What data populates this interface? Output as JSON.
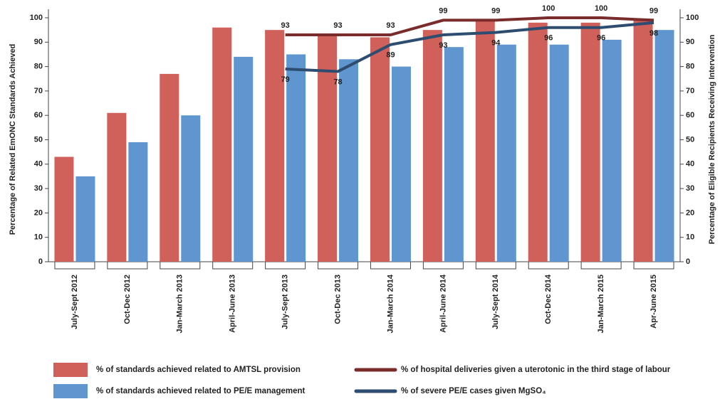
{
  "chart_data": {
    "type": "bar",
    "categories": [
      "July-Sept 2012",
      "Oct-Dec 2012",
      "Jan-March 2013",
      "April-June 2013",
      "July-Sept 2013",
      "Oct-Dec 2013",
      "Jan-March 2014",
      "April-June 2014",
      "July-Sept 2014",
      "Oct-Dec 2014",
      "Jan-March 2015",
      "Apr-June 2015"
    ],
    "y_label": "Percentage of Related EmONC Standards Achieved",
    "y2_label": "Percentage of Eligible Recipients Receiving Intervention",
    "ylim": [
      0,
      100
    ],
    "yticks": [
      0,
      10,
      20,
      30,
      40,
      50,
      60,
      70,
      80,
      90,
      100
    ],
    "y2lim": [
      0,
      100
    ],
    "y2ticks": [
      0,
      10,
      20,
      30,
      40,
      50,
      60,
      70,
      80,
      90,
      100
    ],
    "series": [
      {
        "name": "% of standards achieved related to AMTSL provision",
        "type": "bar",
        "color": "#d0605a",
        "values": [
          43,
          61,
          77,
          96,
          95,
          93,
          92,
          95,
          99,
          98,
          98,
          99
        ]
      },
      {
        "name": "% of standards achieved related to PE/E management",
        "type": "bar",
        "color": "#6096cf",
        "values": [
          35,
          49,
          60,
          84,
          85,
          83,
          80,
          88,
          89,
          89,
          91,
          95
        ]
      },
      {
        "name": "% of hospital deliveries given a uterotonic in the third stage of labour",
        "type": "line",
        "axis": "y2",
        "color": "#7a2b2b",
        "values": [
          null,
          null,
          null,
          null,
          93,
          93,
          93,
          99,
          99,
          100,
          100,
          99
        ]
      },
      {
        "name": "% of severe PE/E cases given MgSO₄",
        "type": "line",
        "axis": "y2",
        "color": "#2d4d70",
        "values": [
          null,
          null,
          null,
          null,
          79,
          78,
          89,
          93,
          94,
          96,
          96,
          98
        ]
      }
    ]
  }
}
